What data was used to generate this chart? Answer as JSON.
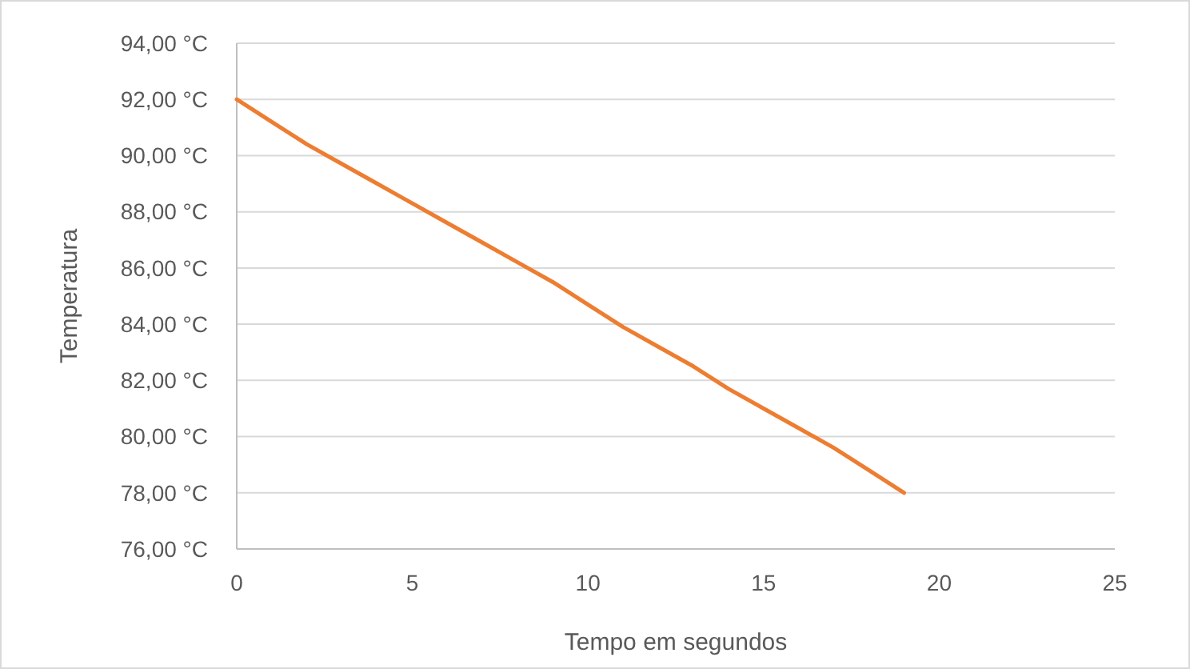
{
  "chart_data": {
    "type": "line",
    "xlabel": "Tempo em segundos",
    "ylabel": "Temperatura",
    "x": [
      0,
      1,
      2,
      3,
      4,
      5,
      6,
      7,
      8,
      9,
      10,
      11,
      12,
      13,
      14,
      15,
      16,
      17,
      18,
      19
    ],
    "series": [
      {
        "color": "#ed7d31",
        "values": [
          92,
          91.2,
          90.4,
          89.7,
          89.0,
          88.3,
          87.6,
          86.9,
          86.2,
          85.5,
          84.7,
          83.9,
          83.2,
          82.5,
          81.7,
          81.0,
          80.3,
          79.6,
          78.8,
          78
        ]
      }
    ],
    "xlim": [
      0,
      25
    ],
    "xticks": [
      0,
      5,
      10,
      15,
      20,
      25
    ],
    "ylim": [
      76,
      94
    ],
    "yticks": [
      {
        "value": 76,
        "label": "76,00 °C"
      },
      {
        "value": 78,
        "label": "78,00 °C"
      },
      {
        "value": 80,
        "label": "80,00 °C"
      },
      {
        "value": 82,
        "label": "82,00 °C"
      },
      {
        "value": 84,
        "label": "84,00 °C"
      },
      {
        "value": 86,
        "label": "86,00 °C"
      },
      {
        "value": 88,
        "label": "88,00 °C"
      },
      {
        "value": 90,
        "label": "90,00 °C"
      },
      {
        "value": 92,
        "label": "92,00 °C"
      },
      {
        "value": 94,
        "label": "94,00 °C"
      }
    ],
    "grid": "y",
    "marker": "none",
    "line_style": "solid"
  }
}
